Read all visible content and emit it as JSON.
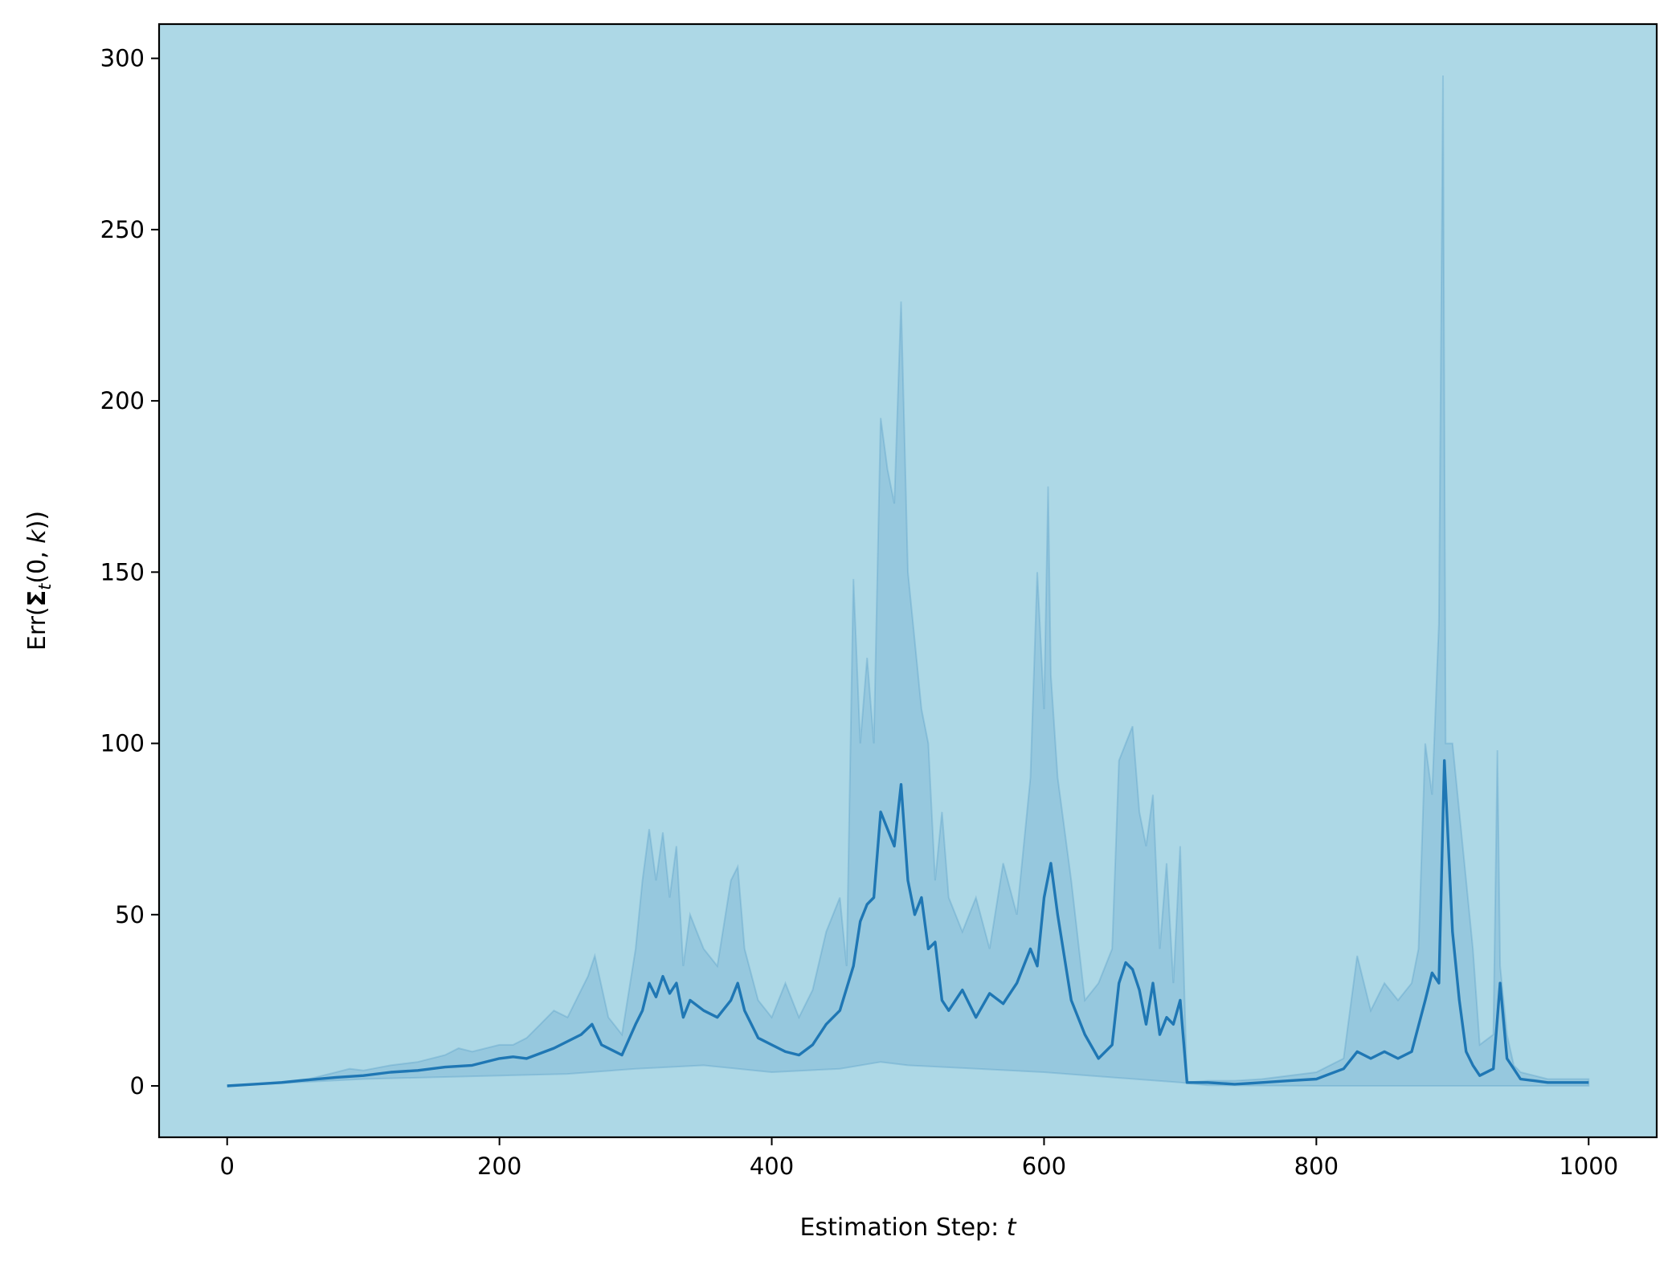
{
  "chart_data": {
    "type": "line",
    "title": "",
    "xlabel": {
      "prefix": "Estimation Step: ",
      "var": "t"
    },
    "ylabel": {
      "pre": "Err(",
      "bold": "Σ",
      "sub": "t",
      "mid": "(0, ",
      "var": "k",
      "post": "))"
    },
    "xlim": [
      -50,
      1050
    ],
    "ylim": [
      -15,
      310
    ],
    "xticks": [
      0,
      200,
      400,
      600,
      800,
      1000
    ],
    "yticks": [
      0,
      50,
      100,
      150,
      200,
      250,
      300
    ],
    "grid": false,
    "legend": "none",
    "colors": {
      "plot_bg": "#add8e6",
      "line": "#1f77b4",
      "band": "#1f77b4"
    },
    "series": [
      {
        "role": "mean",
        "x": [
          0,
          20,
          40,
          60,
          80,
          100,
          120,
          140,
          160,
          180,
          200,
          210,
          220,
          240,
          260,
          268,
          275,
          290,
          300,
          305,
          310,
          315,
          320,
          325,
          330,
          335,
          340,
          350,
          360,
          370,
          375,
          380,
          390,
          400,
          410,
          420,
          430,
          440,
          450,
          460,
          465,
          470,
          475,
          480,
          485,
          490,
          495,
          500,
          505,
          510,
          515,
          520,
          525,
          530,
          540,
          550,
          560,
          570,
          580,
          590,
          595,
          600,
          605,
          610,
          620,
          630,
          640,
          650,
          655,
          660,
          665,
          670,
          675,
          680,
          685,
          690,
          695,
          700,
          705,
          720,
          740,
          760,
          780,
          800,
          820,
          830,
          840,
          850,
          860,
          870,
          880,
          885,
          890,
          894,
          900,
          905,
          910,
          915,
          920,
          930,
          935,
          940,
          945,
          950,
          960,
          970,
          980,
          1000
        ],
        "y": [
          0,
          0.5,
          1,
          1.8,
          2.5,
          3,
          4,
          4.5,
          5.5,
          6,
          8,
          8.5,
          8,
          11,
          15,
          18,
          12,
          9,
          18,
          22,
          30,
          26,
          32,
          27,
          30,
          20,
          25,
          22,
          20,
          25,
          30,
          22,
          14,
          12,
          10,
          9,
          12,
          18,
          22,
          35,
          48,
          53,
          55,
          80,
          75,
          70,
          88,
          60,
          50,
          55,
          40,
          42,
          25,
          22,
          28,
          20,
          27,
          24,
          30,
          40,
          35,
          55,
          65,
          50,
          25,
          15,
          8,
          12,
          30,
          36,
          34,
          28,
          18,
          30,
          15,
          20,
          18,
          25,
          1,
          1,
          0.5,
          1,
          1.5,
          2,
          5,
          10,
          8,
          10,
          8,
          10,
          25,
          33,
          30,
          95,
          45,
          25,
          10,
          6,
          3,
          5,
          30,
          8,
          5,
          2,
          1.5,
          1,
          1,
          1
        ]
      },
      {
        "role": "band_upper",
        "x": [
          0,
          20,
          40,
          60,
          80,
          90,
          100,
          120,
          140,
          160,
          170,
          180,
          200,
          210,
          220,
          230,
          240,
          250,
          260,
          265,
          270,
          280,
          290,
          300,
          305,
          310,
          315,
          320,
          325,
          330,
          335,
          340,
          345,
          350,
          360,
          370,
          375,
          380,
          390,
          400,
          410,
          420,
          430,
          440,
          450,
          455,
          460,
          465,
          470,
          475,
          480,
          485,
          490,
          495,
          500,
          505,
          510,
          515,
          520,
          525,
          530,
          540,
          550,
          560,
          570,
          580,
          590,
          595,
          600,
          603,
          605,
          610,
          620,
          630,
          640,
          650,
          655,
          660,
          665,
          670,
          675,
          680,
          685,
          690,
          695,
          700,
          705,
          720,
          740,
          760,
          780,
          800,
          820,
          830,
          840,
          850,
          860,
          870,
          875,
          880,
          885,
          890,
          893,
          895,
          900,
          905,
          910,
          915,
          920,
          930,
          933,
          935,
          940,
          945,
          950,
          960,
          970,
          980,
          1000
        ],
        "y": [
          0,
          0.6,
          1.2,
          2,
          4,
          5,
          4.5,
          6,
          7,
          9,
          11,
          10,
          12,
          12,
          14,
          18,
          22,
          20,
          28,
          32,
          38,
          20,
          15,
          40,
          60,
          75,
          60,
          74,
          55,
          70,
          35,
          50,
          45,
          40,
          35,
          60,
          64,
          40,
          25,
          20,
          30,
          20,
          28,
          45,
          55,
          35,
          148,
          100,
          125,
          100,
          195,
          180,
          170,
          229,
          150,
          130,
          110,
          100,
          60,
          80,
          55,
          45,
          55,
          40,
          65,
          50,
          90,
          150,
          110,
          175,
          120,
          90,
          60,
          25,
          30,
          40,
          95,
          100,
          105,
          80,
          70,
          85,
          40,
          65,
          30,
          70,
          1,
          1.5,
          1.5,
          2,
          3,
          4,
          8,
          38,
          22,
          30,
          25,
          30,
          40,
          100,
          85,
          135,
          295,
          100,
          100,
          80,
          60,
          40,
          12,
          15,
          98,
          35,
          15,
          6,
          4,
          3,
          2,
          2,
          2
        ]
      },
      {
        "role": "band_lower",
        "x": [
          0,
          100,
          200,
          250,
          300,
          350,
          400,
          450,
          480,
          500,
          600,
          700,
          720,
          800,
          1000
        ],
        "y": [
          0,
          2,
          3,
          3.5,
          5,
          6,
          4,
          5,
          7,
          6,
          4,
          1,
          0.2,
          0,
          0
        ]
      }
    ]
  }
}
